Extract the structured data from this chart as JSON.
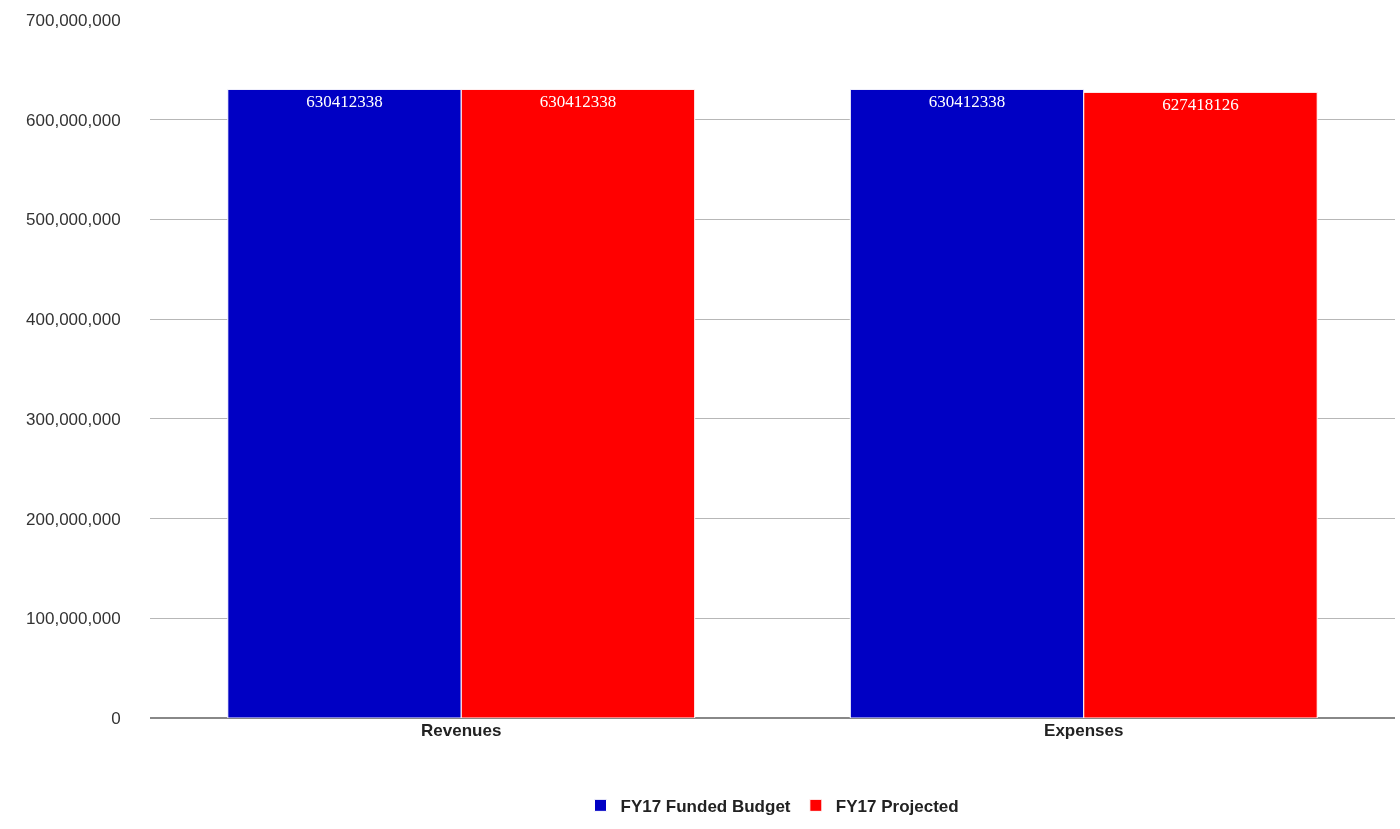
{
  "chart_data": {
    "type": "bar",
    "categories": [
      "Revenues",
      "Expenses"
    ],
    "series": [
      {
        "name": "FY17 Funded Budget",
        "color": "#0000c4",
        "values": [
          630412338,
          630412338
        ]
      },
      {
        "name": "FY17 Projected",
        "color": "#ff0000",
        "values": [
          630412338,
          627418126
        ]
      }
    ],
    "ylim": [
      0,
      700000000
    ],
    "yticks": [
      {
        "value": 0,
        "label": "0"
      },
      {
        "value": 100000000,
        "label": "100,000,000"
      },
      {
        "value": 200000000,
        "label": "200,000,000"
      },
      {
        "value": 300000000,
        "label": "300,000,000"
      },
      {
        "value": 400000000,
        "label": "400,000,000"
      },
      {
        "value": 500000000,
        "label": "500,000,000"
      },
      {
        "value": 600000000,
        "label": "600,000,000"
      },
      {
        "value": 700000000,
        "label": "700,000,000"
      }
    ],
    "grid": "y",
    "legend": "bottom",
    "data_labels": true
  }
}
